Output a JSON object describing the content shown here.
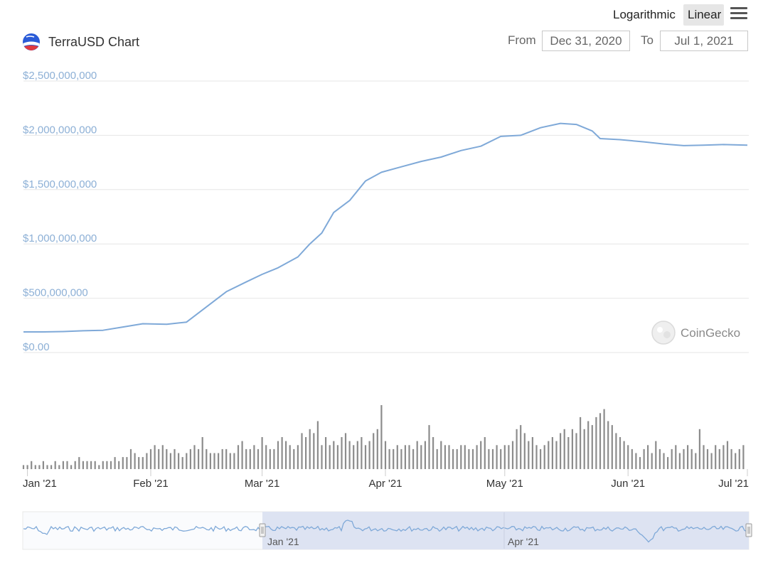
{
  "toolbar": {
    "log_label": "Logarithmic",
    "linear_label": "Linear",
    "menu_icon": "hamburger-menu-icon"
  },
  "header": {
    "title": "TerraUSD Chart",
    "coin_icon": "terrausd-coin-icon",
    "from_label": "From",
    "from_value": "Dec 31, 2020",
    "to_label": "To",
    "to_value": "Jul 1, 2021"
  },
  "watermark": "CoinGecko",
  "colors": {
    "line": "#7fa9d8",
    "grid": "#e6e6e6",
    "bar": "#8c8c8c",
    "axis_label": "#8db0d6",
    "navigator_fill": "#dde3f2"
  },
  "chart_data": {
    "type": "line",
    "title": "TerraUSD Chart",
    "scale": "linear",
    "grid": true,
    "legend": "none",
    "y_ticks": [
      "$2,500,000,000",
      "$2,000,000,000",
      "$1,500,000,000",
      "$1,000,000,000",
      "$500,000,000",
      "$0.00"
    ],
    "ylim": [
      0,
      2500000000
    ],
    "x_ticks": [
      "Jan '21",
      "Feb '21",
      "Mar '21",
      "Apr '21",
      "May '21",
      "Jun '21",
      "Jul '21"
    ],
    "xlim": [
      "2020-12-31",
      "2021-07-01"
    ],
    "series": [
      {
        "values": [
          [
            "2020-12-31",
            190000000
          ],
          [
            "2021-01-05",
            190000000
          ],
          [
            "2021-01-10",
            193000000
          ],
          [
            "2021-01-15",
            200000000
          ],
          [
            "2021-01-20",
            205000000
          ],
          [
            "2021-01-25",
            235000000
          ],
          [
            "2021-01-30",
            265000000
          ],
          [
            "2021-02-05",
            260000000
          ],
          [
            "2021-02-10",
            280000000
          ],
          [
            "2021-02-15",
            420000000
          ],
          [
            "2021-02-20",
            560000000
          ],
          [
            "2021-02-25",
            650000000
          ],
          [
            "2021-03-01",
            720000000
          ],
          [
            "2021-03-05",
            780000000
          ],
          [
            "2021-03-10",
            880000000
          ],
          [
            "2021-03-13",
            1000000000
          ],
          [
            "2021-03-16",
            1100000000
          ],
          [
            "2021-03-19",
            1290000000
          ],
          [
            "2021-03-23",
            1400000000
          ],
          [
            "2021-03-27",
            1580000000
          ],
          [
            "2021-03-31",
            1660000000
          ],
          [
            "2021-04-05",
            1710000000
          ],
          [
            "2021-04-10",
            1760000000
          ],
          [
            "2021-04-15",
            1800000000
          ],
          [
            "2021-04-20",
            1860000000
          ],
          [
            "2021-04-25",
            1900000000
          ],
          [
            "2021-04-30",
            1990000000
          ],
          [
            "2021-05-05",
            2000000000
          ],
          [
            "2021-05-10",
            2070000000
          ],
          [
            "2021-05-15",
            2110000000
          ],
          [
            "2021-05-19",
            2100000000
          ],
          [
            "2021-05-23",
            2040000000
          ],
          [
            "2021-05-25",
            1970000000
          ],
          [
            "2021-05-30",
            1960000000
          ],
          [
            "2021-06-05",
            1940000000
          ],
          [
            "2021-06-10",
            1920000000
          ],
          [
            "2021-06-15",
            1905000000
          ],
          [
            "2021-06-20",
            1910000000
          ],
          [
            "2021-06-25",
            1915000000
          ],
          [
            "2021-07-01",
            1910000000
          ]
        ]
      }
    ],
    "volume": {
      "type": "bar",
      "start": "2020-12-31",
      "step_days": 1,
      "values": [
        1,
        1,
        2,
        1,
        1,
        2,
        1,
        1,
        2,
        1,
        2,
        2,
        1,
        2,
        3,
        2,
        2,
        2,
        2,
        1,
        2,
        2,
        2,
        3,
        2,
        3,
        3,
        5,
        4,
        3,
        3,
        4,
        5,
        6,
        5,
        6,
        5,
        4,
        5,
        4,
        3,
        4,
        5,
        6,
        5,
        8,
        5,
        4,
        4,
        4,
        5,
        5,
        4,
        4,
        6,
        7,
        5,
        5,
        6,
        5,
        8,
        6,
        5,
        5,
        7,
        8,
        7,
        6,
        5,
        6,
        9,
        8,
        10,
        9,
        12,
        6,
        8,
        6,
        7,
        6,
        8,
        9,
        7,
        6,
        7,
        8,
        6,
        7,
        9,
        10,
        16,
        7,
        5,
        5,
        6,
        5,
        6,
        6,
        5,
        7,
        6,
        7,
        11,
        8,
        5,
        7,
        6,
        6,
        5,
        5,
        6,
        6,
        5,
        5,
        6,
        7,
        8,
        5,
        5,
        6,
        5,
        6,
        6,
        7,
        10,
        11,
        9,
        7,
        8,
        6,
        5,
        6,
        7,
        8,
        7,
        9,
        10,
        8,
        10,
        9,
        13,
        10,
        12,
        11,
        13,
        14,
        15,
        12,
        11,
        9,
        8,
        7,
        6,
        5,
        4,
        3,
        5,
        6,
        4,
        7,
        5,
        4,
        3,
        5,
        6,
        4,
        5,
        6,
        5,
        4,
        10,
        6,
        5,
        4,
        6,
        5,
        6,
        7,
        5,
        4,
        5,
        6
      ]
    }
  },
  "navigator": {
    "labels": [
      "Jan '21",
      "Apr '21"
    ]
  }
}
